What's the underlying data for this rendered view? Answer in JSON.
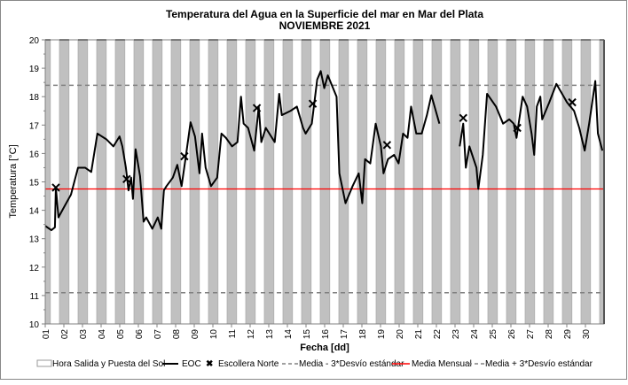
{
  "chart_data": {
    "type": "line",
    "title": "Temperatura del Agua en la Superficie del mar en Mar del Plata",
    "subtitle": "NOVIEMBRE 2021",
    "xlabel": "Fecha [dd]",
    "ylabel": "Temperatura [°C]",
    "ylim": [
      10,
      20
    ],
    "yticks": [
      10,
      11,
      12,
      13,
      14,
      15,
      16,
      17,
      18,
      19,
      20
    ],
    "xlim": [
      1,
      31
    ],
    "xticks": [
      "01",
      "02",
      "03",
      "04",
      "05",
      "06",
      "07",
      "08",
      "09",
      "10",
      "11",
      "12",
      "13",
      "14",
      "15",
      "16",
      "17",
      "18",
      "19",
      "20",
      "21",
      "22",
      "23",
      "24",
      "25",
      "26",
      "27",
      "28",
      "29",
      "30"
    ],
    "night_bands": {
      "start_offset_days": 0.76,
      "end_offset_days": 1.28,
      "color": "#c0c0c0"
    },
    "legend": {
      "placement": "bottom",
      "entries": [
        "Hora Salida y Puesta del Sol",
        "EOC",
        "Escollera Norte",
        "Media - 3*Desvío estándar",
        "Media Mensual",
        "Media + 3*Desvío estándar"
      ]
    },
    "reference_lines": {
      "mean": {
        "value": 14.75,
        "color": "#ff0000"
      },
      "lower": {
        "value": 11.1,
        "color": "#808080"
      },
      "upper": {
        "value": 18.4,
        "color": "#808080"
      }
    },
    "series": [
      {
        "name": "EOC",
        "color": "#000000",
        "segments": [
          [
            [
              1.0,
              13.45
            ],
            [
              1.33,
              13.3
            ],
            [
              1.52,
              13.4
            ],
            [
              1.57,
              14.8
            ],
            [
              1.71,
              13.75
            ],
            [
              2.0,
              14.1
            ],
            [
              2.38,
              14.55
            ],
            [
              2.76,
              15.5
            ],
            [
              3.14,
              15.5
            ],
            [
              3.47,
              15.35
            ],
            [
              3.8,
              16.7
            ],
            [
              4.28,
              16.5
            ],
            [
              4.66,
              16.25
            ],
            [
              4.99,
              16.6
            ],
            [
              5.14,
              16.25
            ],
            [
              5.33,
              15.5
            ],
            [
              5.47,
              14.7
            ],
            [
              5.61,
              15.15
            ],
            [
              5.71,
              14.4
            ],
            [
              5.85,
              16.15
            ],
            [
              6.09,
              15.2
            ],
            [
              6.28,
              13.6
            ],
            [
              6.42,
              13.75
            ],
            [
              6.75,
              13.35
            ],
            [
              7.04,
              13.75
            ],
            [
              7.23,
              13.35
            ],
            [
              7.37,
              14.7
            ],
            [
              7.51,
              14.85
            ],
            [
              7.85,
              15.15
            ],
            [
              8.09,
              15.6
            ],
            [
              8.32,
              14.85
            ],
            [
              8.56,
              15.95
            ],
            [
              8.8,
              17.1
            ],
            [
              9.04,
              16.6
            ],
            [
              9.28,
              15.3
            ],
            [
              9.42,
              16.7
            ],
            [
              9.61,
              15.5
            ],
            [
              9.9,
              14.85
            ],
            [
              10.23,
              15.15
            ],
            [
              10.46,
              16.7
            ],
            [
              10.7,
              16.55
            ],
            [
              11.03,
              16.25
            ],
            [
              11.32,
              16.4
            ],
            [
              11.51,
              18.0
            ],
            [
              11.65,
              17.05
            ],
            [
              11.89,
              16.9
            ],
            [
              12.22,
              16.1
            ],
            [
              12.46,
              17.65
            ],
            [
              12.6,
              16.4
            ],
            [
              12.84,
              16.9
            ],
            [
              13.32,
              16.4
            ],
            [
              13.56,
              18.1
            ],
            [
              13.7,
              17.35
            ],
            [
              14.17,
              17.5
            ],
            [
              14.51,
              17.65
            ],
            [
              14.84,
              16.9
            ],
            [
              14.98,
              16.7
            ],
            [
              15.31,
              17.05
            ],
            [
              15.6,
              18.6
            ],
            [
              15.79,
              18.9
            ],
            [
              15.98,
              18.3
            ],
            [
              16.17,
              18.75
            ],
            [
              16.64,
              18.0
            ],
            [
              16.79,
              15.3
            ],
            [
              17.12,
              14.25
            ],
            [
              17.5,
              14.85
            ],
            [
              17.83,
              15.3
            ],
            [
              18.02,
              14.25
            ],
            [
              18.17,
              15.8
            ],
            [
              18.45,
              15.65
            ],
            [
              18.74,
              17.05
            ],
            [
              19.02,
              16.25
            ],
            [
              19.16,
              15.3
            ],
            [
              19.4,
              15.8
            ],
            [
              19.73,
              15.95
            ],
            [
              19.97,
              15.65
            ],
            [
              20.21,
              16.7
            ],
            [
              20.45,
              16.55
            ],
            [
              20.64,
              17.65
            ],
            [
              20.92,
              16.7
            ],
            [
              21.21,
              16.7
            ],
            [
              21.49,
              17.35
            ],
            [
              21.73,
              18.05
            ],
            [
              22.16,
              17.05
            ]
          ],
          [
            [
              23.25,
              16.25
            ],
            [
              23.44,
              17.05
            ],
            [
              23.58,
              15.5
            ],
            [
              23.77,
              16.25
            ],
            [
              24.15,
              15.5
            ],
            [
              24.25,
              14.75
            ],
            [
              24.49,
              15.95
            ],
            [
              24.72,
              18.1
            ],
            [
              25.2,
              17.65
            ],
            [
              25.58,
              17.05
            ],
            [
              25.91,
              17.2
            ],
            [
              26.15,
              17.05
            ],
            [
              26.3,
              16.55
            ],
            [
              26.63,
              18.0
            ],
            [
              26.87,
              17.65
            ],
            [
              27.11,
              16.7
            ],
            [
              27.25,
              15.95
            ],
            [
              27.39,
              17.65
            ],
            [
              27.58,
              18.0
            ],
            [
              27.68,
              17.2
            ],
            [
              28.06,
              17.8
            ],
            [
              28.44,
              18.45
            ],
            [
              29.01,
              17.8
            ],
            [
              29.39,
              17.5
            ],
            [
              29.67,
              16.9
            ],
            [
              29.96,
              16.1
            ],
            [
              30.2,
              17.05
            ],
            [
              30.53,
              18.55
            ],
            [
              30.67,
              16.7
            ],
            [
              30.91,
              16.1
            ]
          ]
        ]
      },
      {
        "name": "Escollera Norte",
        "color": "#000000",
        "marker": "x",
        "points": [
          [
            1.57,
            14.8
          ],
          [
            5.37,
            15.1
          ],
          [
            8.47,
            15.9
          ],
          [
            12.36,
            17.6
          ],
          [
            15.36,
            17.75
          ],
          [
            19.35,
            16.3
          ],
          [
            23.44,
            17.25
          ],
          [
            26.34,
            16.9
          ],
          [
            29.29,
            17.8
          ]
        ]
      }
    ]
  }
}
